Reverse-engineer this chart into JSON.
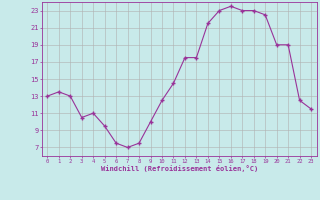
{
  "hours": [
    0,
    1,
    2,
    3,
    4,
    5,
    6,
    7,
    8,
    9,
    10,
    11,
    12,
    13,
    14,
    15,
    16,
    17,
    18,
    19,
    20,
    21,
    22,
    23
  ],
  "values": [
    13,
    13.5,
    13,
    10.5,
    11,
    9.5,
    7.5,
    7,
    7.5,
    10,
    12.5,
    14.5,
    17.5,
    17.5,
    21.5,
    23,
    23.5,
    23,
    23,
    22.5,
    19,
    19,
    12.5,
    11.5
  ],
  "bg_color": "#c8eaea",
  "grid_color": "#b0b0b0",
  "line_color": "#993399",
  "marker_color": "#993399",
  "xlabel": "Windchill (Refroidissement éolien,°C)",
  "xlabel_color": "#993399",
  "tick_color": "#993399",
  "ylim": [
    6,
    24
  ],
  "yticks": [
    7,
    9,
    11,
    13,
    15,
    17,
    19,
    21,
    23
  ],
  "xlim": [
    -0.5,
    23.5
  ],
  "xticks": [
    0,
    1,
    2,
    3,
    4,
    5,
    6,
    7,
    8,
    9,
    10,
    11,
    12,
    13,
    14,
    15,
    16,
    17,
    18,
    19,
    20,
    21,
    22,
    23
  ]
}
